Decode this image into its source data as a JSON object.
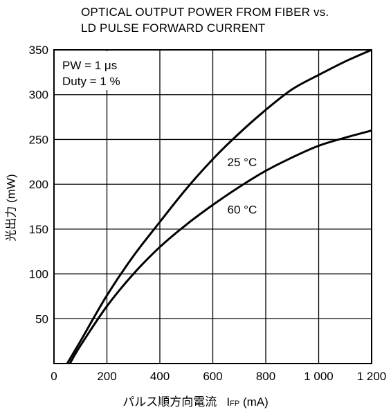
{
  "chart_data": {
    "type": "line",
    "title_lines": [
      "OPTICAL OUTPUT POWER FROM FIBER vs.",
      "LD PULSE FORWARD CURRENT"
    ],
    "xlabel": "パルス順方向電流",
    "xlabel_symbol_main": "I",
    "xlabel_symbol_sub": "FP",
    "xlabel_unit": "(mA)",
    "ylabel": "光出力 (mW)",
    "xlim": [
      0,
      1200
    ],
    "ylim": [
      0,
      350
    ],
    "x_ticks": [
      {
        "value": 0,
        "label": "0"
      },
      {
        "value": 200,
        "label": "200"
      },
      {
        "value": 400,
        "label": "400"
      },
      {
        "value": 600,
        "label": "600"
      },
      {
        "value": 800,
        "label": "800"
      },
      {
        "value": 1000,
        "label": "1 000"
      },
      {
        "value": 1200,
        "label": "1 200"
      }
    ],
    "y_ticks": [
      {
        "value": 50,
        "label": "50"
      },
      {
        "value": 100,
        "label": "100"
      },
      {
        "value": 150,
        "label": "150"
      },
      {
        "value": 200,
        "label": "200"
      },
      {
        "value": 250,
        "label": "250"
      },
      {
        "value": 300,
        "label": "300"
      },
      {
        "value": 350,
        "label": "350"
      }
    ],
    "grid": true,
    "conditions": [
      "PW = 1 μs",
      "Duty = 1 %"
    ],
    "series": [
      {
        "name": "25 °C",
        "x": [
          50,
          100,
          200,
          300,
          400,
          500,
          600,
          700,
          800,
          900,
          1000,
          1100,
          1200
        ],
        "y": [
          0,
          25,
          76,
          120,
          158,
          195,
          228,
          257,
          283,
          306,
          322,
          337,
          350
        ]
      },
      {
        "name": "60 °C",
        "x": [
          60,
          100,
          200,
          300,
          400,
          500,
          600,
          700,
          800,
          900,
          1000,
          1100,
          1200
        ],
        "y": [
          0,
          20,
          64,
          100,
          130,
          155,
          177,
          197,
          215,
          230,
          243,
          252,
          260
        ]
      }
    ]
  }
}
